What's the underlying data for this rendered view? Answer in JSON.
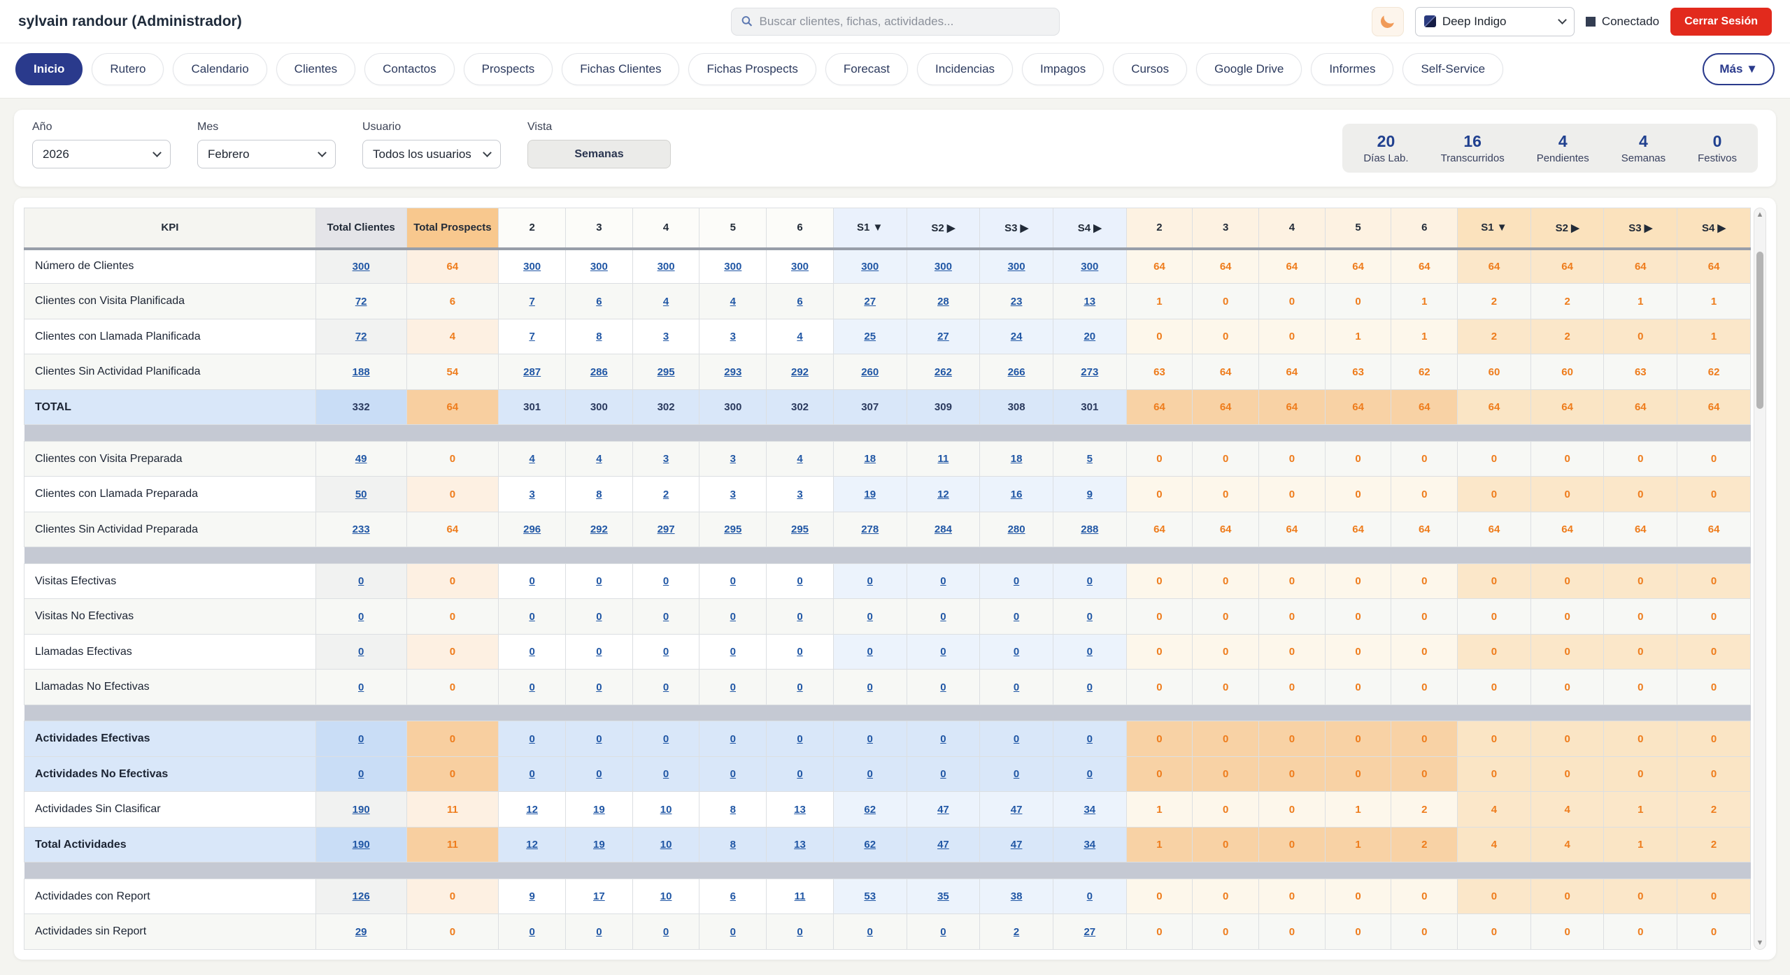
{
  "header": {
    "user": "sylvain randour (Administrador)",
    "search_placeholder": "Buscar clientes, fichas, actividades...",
    "theme": "Deep Indigo",
    "connection_status": "Conectado",
    "logout_label": "Cerrar Sesión"
  },
  "nav": {
    "tabs": [
      "Inicio",
      "Rutero",
      "Calendario",
      "Clientes",
      "Contactos",
      "Prospects",
      "Fichas Clientes",
      "Fichas Prospects",
      "Forecast",
      "Incidencias",
      "Impagos",
      "Cursos",
      "Google Drive",
      "Informes",
      "Self-Service"
    ],
    "active_tab": "Inicio",
    "more_label": "Más ▼"
  },
  "filters": {
    "year": {
      "label": "Año",
      "value": "2026"
    },
    "month": {
      "label": "Mes",
      "value": "Febrero"
    },
    "user": {
      "label": "Usuario",
      "value": "Todos los usuarios"
    },
    "view": {
      "label": "Vista",
      "value": "Semanas"
    }
  },
  "stats": [
    {
      "value": "20",
      "label": "Días Lab."
    },
    {
      "value": "16",
      "label": "Transcurridos"
    },
    {
      "value": "4",
      "label": "Pendientes"
    },
    {
      "value": "4",
      "label": "Semanas"
    },
    {
      "value": "0",
      "label": "Festivos"
    }
  ],
  "colors": {
    "accent_indigo": "#2a3a8c",
    "logout_red": "#e22a1d",
    "client_link_blue": "#2157a5",
    "prospect_orange": "#ee7c1c"
  },
  "table": {
    "headers": {
      "kpi": "KPI",
      "total_clientes": "Total Clientes",
      "total_prospects": "Total Prospects",
      "client_weeks": [
        "2",
        "3",
        "4",
        "5",
        "6"
      ],
      "client_s": [
        "S1 ▼",
        "S2 ▶",
        "S3 ▶",
        "S4 ▶"
      ],
      "prospect_weeks": [
        "2",
        "3",
        "4",
        "5",
        "6"
      ],
      "prospect_s": [
        "S1 ▼",
        "S2 ▶",
        "S3 ▶",
        "S4 ▶"
      ]
    },
    "rows": [
      {
        "kpi": "Número de Clientes",
        "tc": "300",
        "tp": "64",
        "cw": [
          "300",
          "300",
          "300",
          "300",
          "300"
        ],
        "cs": [
          "300",
          "300",
          "300",
          "300"
        ],
        "pw": [
          "64",
          "64",
          "64",
          "64",
          "64"
        ],
        "ps": [
          "64",
          "64",
          "64",
          "64"
        ],
        "style": "normal",
        "links": true
      },
      {
        "kpi": "Clientes con Visita Planificada",
        "tc": "72",
        "tp": "6",
        "cw": [
          "7",
          "6",
          "4",
          "4",
          "6"
        ],
        "cs": [
          "27",
          "28",
          "23",
          "13"
        ],
        "pw": [
          "1",
          "0",
          "0",
          "0",
          "1"
        ],
        "ps": [
          "2",
          "2",
          "1",
          "1"
        ],
        "style": "normal",
        "shade": true,
        "links": true
      },
      {
        "kpi": "Clientes con Llamada Planificada",
        "tc": "72",
        "tp": "4",
        "cw": [
          "7",
          "8",
          "3",
          "3",
          "4"
        ],
        "cs": [
          "25",
          "27",
          "24",
          "20"
        ],
        "pw": [
          "0",
          "0",
          "0",
          "1",
          "1"
        ],
        "ps": [
          "2",
          "2",
          "0",
          "1"
        ],
        "style": "normal",
        "links": true
      },
      {
        "kpi": "Clientes Sin Actividad Planificada",
        "tc": "188",
        "tp": "54",
        "cw": [
          "287",
          "286",
          "295",
          "293",
          "292"
        ],
        "cs": [
          "260",
          "262",
          "266",
          "273"
        ],
        "pw": [
          "63",
          "64",
          "64",
          "63",
          "62"
        ],
        "ps": [
          "60",
          "60",
          "63",
          "62"
        ],
        "style": "normal",
        "shade": true,
        "links": true
      },
      {
        "kpi": "TOTAL",
        "tc": "332",
        "tp": "64",
        "cw": [
          "301",
          "300",
          "302",
          "300",
          "302"
        ],
        "cs": [
          "307",
          "309",
          "308",
          "301"
        ],
        "pw": [
          "64",
          "64",
          "64",
          "64",
          "64"
        ],
        "ps": [
          "64",
          "64",
          "64",
          "64"
        ],
        "style": "hl",
        "links": false
      },
      {
        "sep": true
      },
      {
        "kpi": "Clientes con Visita Preparada",
        "tc": "49",
        "tp": "0",
        "cw": [
          "4",
          "4",
          "3",
          "3",
          "4"
        ],
        "cs": [
          "18",
          "11",
          "18",
          "5"
        ],
        "pw": [
          "0",
          "0",
          "0",
          "0",
          "0"
        ],
        "ps": [
          "0",
          "0",
          "0",
          "0"
        ],
        "style": "normal",
        "shade": true,
        "links": true
      },
      {
        "kpi": "Clientes con Llamada Preparada",
        "tc": "50",
        "tp": "0",
        "cw": [
          "3",
          "8",
          "2",
          "3",
          "3"
        ],
        "cs": [
          "19",
          "12",
          "16",
          "9"
        ],
        "pw": [
          "0",
          "0",
          "0",
          "0",
          "0"
        ],
        "ps": [
          "0",
          "0",
          "0",
          "0"
        ],
        "style": "normal",
        "links": true
      },
      {
        "kpi": "Clientes Sin Actividad Preparada",
        "tc": "233",
        "tp": "64",
        "cw": [
          "296",
          "292",
          "297",
          "295",
          "295"
        ],
        "cs": [
          "278",
          "284",
          "280",
          "288"
        ],
        "pw": [
          "64",
          "64",
          "64",
          "64",
          "64"
        ],
        "ps": [
          "64",
          "64",
          "64",
          "64"
        ],
        "style": "normal",
        "shade": true,
        "links": true
      },
      {
        "sep": true
      },
      {
        "kpi": "Visitas Efectivas",
        "tc": "0",
        "tp": "0",
        "cw": [
          "0",
          "0",
          "0",
          "0",
          "0"
        ],
        "cs": [
          "0",
          "0",
          "0",
          "0"
        ],
        "pw": [
          "0",
          "0",
          "0",
          "0",
          "0"
        ],
        "ps": [
          "0",
          "0",
          "0",
          "0"
        ],
        "style": "normal",
        "links": true
      },
      {
        "kpi": "Visitas No Efectivas",
        "tc": "0",
        "tp": "0",
        "cw": [
          "0",
          "0",
          "0",
          "0",
          "0"
        ],
        "cs": [
          "0",
          "0",
          "0",
          "0"
        ],
        "pw": [
          "0",
          "0",
          "0",
          "0",
          "0"
        ],
        "ps": [
          "0",
          "0",
          "0",
          "0"
        ],
        "style": "normal",
        "shade": true,
        "links": true
      },
      {
        "kpi": "Llamadas Efectivas",
        "tc": "0",
        "tp": "0",
        "cw": [
          "0",
          "0",
          "0",
          "0",
          "0"
        ],
        "cs": [
          "0",
          "0",
          "0",
          "0"
        ],
        "pw": [
          "0",
          "0",
          "0",
          "0",
          "0"
        ],
        "ps": [
          "0",
          "0",
          "0",
          "0"
        ],
        "style": "normal",
        "links": true
      },
      {
        "kpi": "Llamadas No Efectivas",
        "tc": "0",
        "tp": "0",
        "cw": [
          "0",
          "0",
          "0",
          "0",
          "0"
        ],
        "cs": [
          "0",
          "0",
          "0",
          "0"
        ],
        "pw": [
          "0",
          "0",
          "0",
          "0",
          "0"
        ],
        "ps": [
          "0",
          "0",
          "0",
          "0"
        ],
        "style": "normal",
        "shade": true,
        "links": true
      },
      {
        "sep": true
      },
      {
        "kpi": "Actividades Efectivas",
        "tc": "0",
        "tp": "0",
        "cw": [
          "0",
          "0",
          "0",
          "0",
          "0"
        ],
        "cs": [
          "0",
          "0",
          "0",
          "0"
        ],
        "pw": [
          "0",
          "0",
          "0",
          "0",
          "0"
        ],
        "ps": [
          "0",
          "0",
          "0",
          "0"
        ],
        "style": "hl",
        "links": true
      },
      {
        "kpi": "Actividades No Efectivas",
        "tc": "0",
        "tp": "0",
        "cw": [
          "0",
          "0",
          "0",
          "0",
          "0"
        ],
        "cs": [
          "0",
          "0",
          "0",
          "0"
        ],
        "pw": [
          "0",
          "0",
          "0",
          "0",
          "0"
        ],
        "ps": [
          "0",
          "0",
          "0",
          "0"
        ],
        "style": "hl",
        "links": true
      },
      {
        "kpi": "Actividades Sin Clasificar",
        "tc": "190",
        "tp": "11",
        "cw": [
          "12",
          "19",
          "10",
          "8",
          "13"
        ],
        "cs": [
          "62",
          "47",
          "47",
          "34"
        ],
        "pw": [
          "1",
          "0",
          "0",
          "1",
          "2"
        ],
        "ps": [
          "4",
          "4",
          "1",
          "2"
        ],
        "style": "normal",
        "links": true
      },
      {
        "kpi": "Total Actividades",
        "tc": "190",
        "tp": "11",
        "cw": [
          "12",
          "19",
          "10",
          "8",
          "13"
        ],
        "cs": [
          "62",
          "47",
          "47",
          "34"
        ],
        "pw": [
          "1",
          "0",
          "0",
          "1",
          "2"
        ],
        "ps": [
          "4",
          "4",
          "1",
          "2"
        ],
        "style": "hl",
        "links": true
      },
      {
        "sep": true
      },
      {
        "kpi": "Actividades con Report",
        "tc": "126",
        "tp": "0",
        "cw": [
          "9",
          "17",
          "10",
          "6",
          "11"
        ],
        "cs": [
          "53",
          "35",
          "38",
          "0"
        ],
        "pw": [
          "0",
          "0",
          "0",
          "0",
          "0"
        ],
        "ps": [
          "0",
          "0",
          "0",
          "0"
        ],
        "style": "normal",
        "links": true
      },
      {
        "kpi": "Actividades sin Report",
        "tc": "29",
        "tp": "0",
        "cw": [
          "0",
          "0",
          "0",
          "0",
          "0"
        ],
        "cs": [
          "0",
          "0",
          "2",
          "27"
        ],
        "pw": [
          "0",
          "0",
          "0",
          "0",
          "0"
        ],
        "ps": [
          "0",
          "0",
          "0",
          "0"
        ],
        "style": "normal",
        "shade": true,
        "links": true
      }
    ]
  }
}
